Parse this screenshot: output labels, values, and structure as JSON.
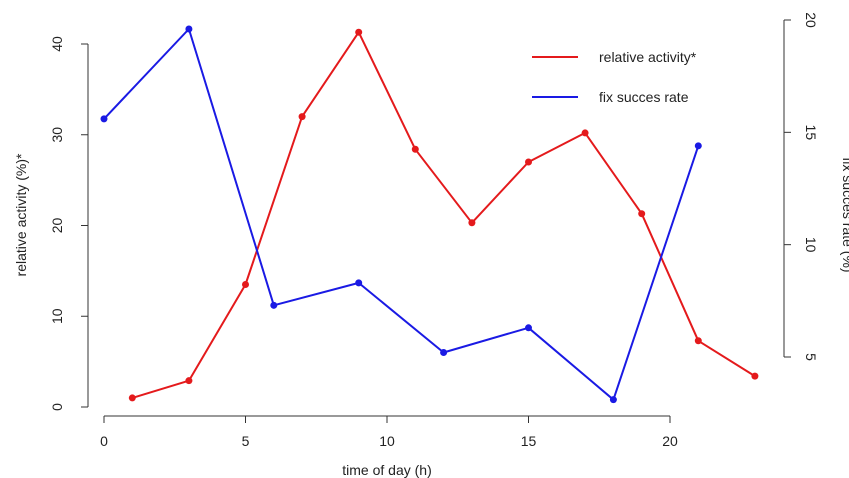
{
  "chart_data": {
    "type": "line",
    "xlabel": "time of day (h)",
    "ylabel_left": "relative activity (%)*",
    "ylabel_right": "fix succes rate (%)",
    "xlim": [
      0,
      20
    ],
    "xticks": [
      0,
      5,
      10,
      15,
      20
    ],
    "ylim_left": [
      0,
      40
    ],
    "yticks_left": [
      0,
      10,
      20,
      30,
      40
    ],
    "ylim_right": [
      5,
      20
    ],
    "yticks_right": [
      5,
      10,
      15,
      20
    ],
    "grid": false,
    "legend_position": "top-right",
    "series": [
      {
        "name": "relative activity*",
        "axis": "left",
        "color": "#e41a1c",
        "x": [
          1,
          3,
          5,
          7,
          9,
          11,
          13,
          15,
          17,
          19,
          21,
          23
        ],
        "y": [
          1.0,
          2.9,
          13.5,
          32.0,
          41.3,
          28.4,
          20.3,
          27.0,
          30.2,
          21.3,
          7.3,
          3.4
        ]
      },
      {
        "name": "fix succes rate",
        "axis": "right",
        "color": "#1a1ae4",
        "x": [
          0,
          3,
          6,
          9,
          12,
          15,
          18,
          21
        ],
        "y": [
          15.6,
          19.6,
          7.3,
          8.3,
          5.2,
          6.3,
          3.1,
          14.4
        ]
      }
    ]
  }
}
